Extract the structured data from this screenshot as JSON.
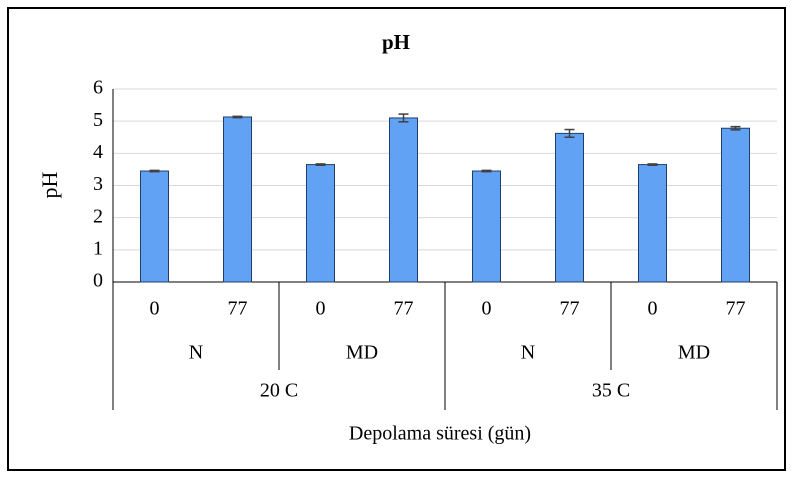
{
  "chart_data": {
    "type": "bar",
    "title": "pH",
    "y_label": "pH",
    "x_label": "Depolama süresi (gün)",
    "categories": [
      "0",
      "77",
      "0",
      "77",
      "0",
      "77",
      "0",
      "77"
    ],
    "groups": [
      "N",
      "MD",
      "N",
      "MD"
    ],
    "supergroups": [
      "20 C",
      "35 C"
    ],
    "values": [
      3.45,
      5.13,
      3.65,
      5.1,
      3.45,
      4.62,
      3.65,
      4.78
    ],
    "errors": [
      0.02,
      0.02,
      0.02,
      0.12,
      0.02,
      0.12,
      0.02,
      0.05
    ],
    "color": "#62a2f4",
    "ylim": [
      0,
      6
    ],
    "yticks": [
      0,
      1,
      2,
      3,
      4,
      5,
      6
    ],
    "grid": true
  }
}
